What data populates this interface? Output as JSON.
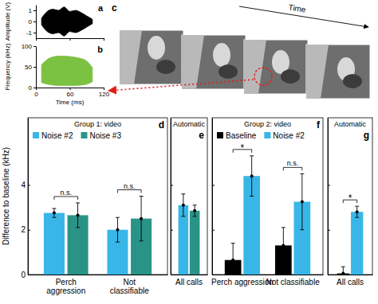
{
  "chart_data": [
    {
      "type": "area",
      "title": "a",
      "y_label": "Amplitude (V)",
      "x": [
        10,
        20,
        30,
        40,
        50,
        60,
        70,
        80,
        90,
        100
      ],
      "upper": [
        0.3,
        0.9,
        1.1,
        1.0,
        1.3,
        0.9,
        1.0,
        0.8,
        0.5,
        0.2
      ],
      "lower": [
        -0.3,
        -0.9,
        -1.1,
        -1.0,
        -1.3,
        -0.9,
        -1.0,
        -0.8,
        -0.5,
        -0.2
      ],
      "color": "#000000",
      "xlim": [
        0,
        120
      ],
      "xticks": [
        0,
        60,
        120
      ],
      "ylim": [
        -1.5,
        1.5
      ],
      "yticks": [
        -1,
        0,
        1
      ],
      "tick_labels": "y"
    },
    {
      "type": "area",
      "title": "b",
      "y_label": "Frequency (kHz)",
      "x_label": "Time (ms)",
      "x": [
        10,
        20,
        30,
        40,
        50,
        60,
        70,
        80,
        90,
        100
      ],
      "upper": [
        55,
        68,
        74,
        76,
        76,
        75,
        73,
        70,
        64,
        48
      ],
      "lower": [
        12,
        8,
        6,
        5,
        5,
        5,
        5,
        6,
        8,
        14
      ],
      "color": "#7cc242",
      "xlim": [
        0,
        120
      ],
      "xticks": [
        0,
        60,
        120
      ],
      "ylim": [
        0,
        100
      ],
      "yticks": [
        0,
        50,
        100
      ]
    },
    {
      "type": "bar",
      "title": "d",
      "subtitle": "Group 1: video",
      "y_label": "Difference to baseline (kHz)",
      "categories": [
        "Perch aggression",
        "Not classifiable"
      ],
      "series": [
        {
          "name": "Noise #2",
          "color": "#38b6e8",
          "values": [
            2.75,
            2.0
          ],
          "errors": [
            0.2,
            0.55
          ]
        },
        {
          "name": "Noise #3",
          "color": "#2a9387",
          "values": [
            2.65,
            2.5
          ],
          "errors": [
            0.55,
            1.0
          ]
        }
      ],
      "ylim": [
        0,
        7
      ],
      "yticks": [
        0,
        2,
        4
      ],
      "legend": "top-left",
      "annotations": [
        {
          "text": "n.s.",
          "category": 0
        },
        {
          "text": "n.s.",
          "category": 1
        }
      ]
    },
    {
      "type": "bar",
      "title": "e",
      "subtitle": "Automatic",
      "categories": [
        "All calls"
      ],
      "series": [
        {
          "name": "Noise #2",
          "color": "#38b6e8",
          "values": [
            3.1
          ],
          "errors": [
            0.5
          ]
        },
        {
          "name": "Noise #3",
          "color": "#2a9387",
          "values": [
            2.85
          ],
          "errors": [
            0.25
          ]
        }
      ],
      "ylim": [
        0,
        7
      ],
      "yticks": [
        0,
        2,
        4
      ],
      "tick_labels": "x"
    },
    {
      "type": "bar",
      "title": "f",
      "subtitle": "Group 2: video",
      "categories": [
        "Perch aggression",
        "Not classifiable"
      ],
      "series": [
        {
          "name": "Baseline",
          "color": "#000000",
          "values": [
            0.65,
            1.3
          ],
          "errors": [
            0.75,
            0.8
          ]
        },
        {
          "name": "Noise #2",
          "color": "#38b6e8",
          "values": [
            4.4,
            3.25
          ],
          "errors": [
            0.9,
            1.25
          ]
        }
      ],
      "ylim": [
        0,
        7
      ],
      "yticks": [
        0,
        2,
        4
      ],
      "tick_labels": "x",
      "legend": "top-left",
      "annotations": [
        {
          "text": "*",
          "category": 0
        },
        {
          "text": "n.s.",
          "category": 1
        }
      ]
    },
    {
      "type": "bar",
      "title": "g",
      "subtitle": "Automatic",
      "categories": [
        "All calls"
      ],
      "series": [
        {
          "name": "Baseline",
          "color": "#000000",
          "values": [
            0.05
          ],
          "errors": [
            0.3
          ]
        },
        {
          "name": "Noise #2",
          "color": "#38b6e8",
          "values": [
            2.8
          ],
          "errors": [
            0.25
          ]
        }
      ],
      "ylim": [
        0,
        7
      ],
      "yticks": [
        0,
        2,
        4
      ],
      "tick_labels": "x",
      "annotations": [
        {
          "text": "*",
          "category": 0
        }
      ]
    }
  ],
  "panel_c": {
    "title": "c",
    "annotation": "Time"
  }
}
